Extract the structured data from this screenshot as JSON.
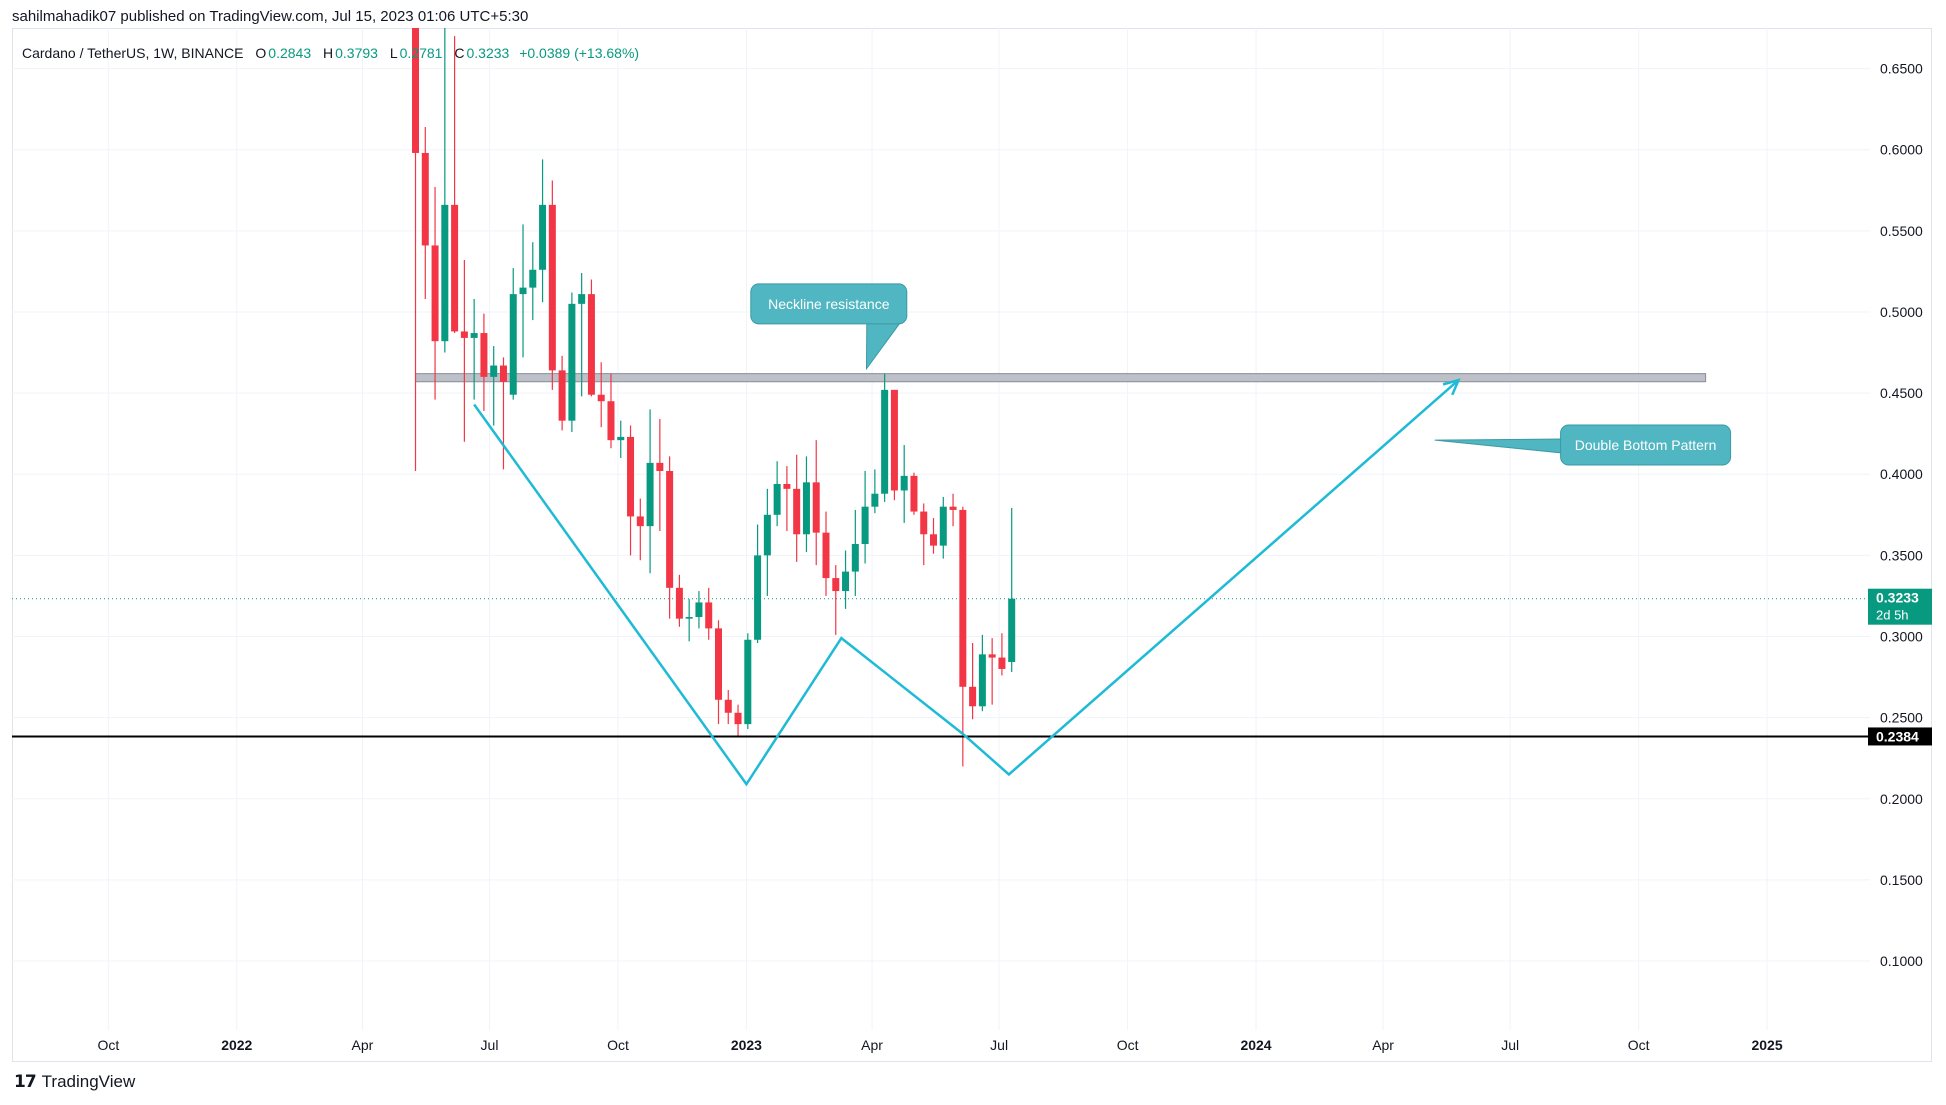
{
  "header": {
    "publisher_text": "sahilmahadik07 published on TradingView.com, Jul 15, 2023 01:06 UTC+5:30"
  },
  "symbol": {
    "name": "Cardano / TetherUS, 1W, BINANCE",
    "open_label": "O",
    "open": "0.2843",
    "high_label": "H",
    "high": "0.3793",
    "low_label": "L",
    "low": "0.2781",
    "close_label": "C",
    "close": "0.3233",
    "change": "+0.0389 (+13.68%)"
  },
  "footer": {
    "brand": "TradingView"
  },
  "colors": {
    "up": "#089981",
    "down": "#f23645",
    "pattern_line": "#1fbad6",
    "callout_bg": "#4fb6c2",
    "support_line": "#000000",
    "resistance_zone": "#b2b5be"
  },
  "chart_data": {
    "type": "candlestick",
    "timeframe": "1W",
    "ylim": [
      0.0575,
      0.675
    ],
    "y_scale_position": "right",
    "y_ticks": [
      "0.6500",
      "0.6000",
      "0.5500",
      "0.5000",
      "0.4500",
      "0.4000",
      "0.3500",
      "0.3000",
      "0.2500",
      "0.2000",
      "0.1500",
      "0.1000"
    ],
    "x_ticks": [
      {
        "label": "Oct",
        "date": "2021-10-01",
        "bold": false
      },
      {
        "label": "2022",
        "date": "2022-01-01",
        "bold": true
      },
      {
        "label": "Apr",
        "date": "2022-04-01",
        "bold": false
      },
      {
        "label": "Jul",
        "date": "2022-07-01",
        "bold": false
      },
      {
        "label": "Oct",
        "date": "2022-10-01",
        "bold": false
      },
      {
        "label": "2023",
        "date": "2023-01-01",
        "bold": true
      },
      {
        "label": "Apr",
        "date": "2023-04-01",
        "bold": false
      },
      {
        "label": "Jul",
        "date": "2023-07-01",
        "bold": false
      },
      {
        "label": "Oct",
        "date": "2023-10-01",
        "bold": false
      },
      {
        "label": "2024",
        "date": "2024-01-01",
        "bold": true
      },
      {
        "label": "Apr",
        "date": "2024-04-01",
        "bold": false
      },
      {
        "label": "Jul",
        "date": "2024-07-01",
        "bold": false
      },
      {
        "label": "Oct",
        "date": "2024-10-01",
        "bold": false
      },
      {
        "label": "2025",
        "date": "2025-01-01",
        "bold": true
      }
    ],
    "x_range": [
      "2021-07-24",
      "2025-03-10"
    ],
    "candles": [
      {
        "date": "2022-05-09",
        "o": 0.805,
        "h": 0.83,
        "l": 0.402,
        "c": 0.598
      },
      {
        "date": "2022-05-16",
        "o": 0.598,
        "h": 0.614,
        "l": 0.508,
        "c": 0.541
      },
      {
        "date": "2022-05-23",
        "o": 0.541,
        "h": 0.577,
        "l": 0.446,
        "c": 0.482
      },
      {
        "date": "2022-05-30",
        "o": 0.482,
        "h": 0.686,
        "l": 0.475,
        "c": 0.566
      },
      {
        "date": "2022-06-06",
        "o": 0.566,
        "h": 0.67,
        "l": 0.487,
        "c": 0.488
      },
      {
        "date": "2022-06-13",
        "o": 0.488,
        "h": 0.532,
        "l": 0.42,
        "c": 0.484
      },
      {
        "date": "2022-06-20",
        "o": 0.484,
        "h": 0.508,
        "l": 0.446,
        "c": 0.487
      },
      {
        "date": "2022-06-27",
        "o": 0.487,
        "h": 0.499,
        "l": 0.439,
        "c": 0.46
      },
      {
        "date": "2022-07-04",
        "o": 0.46,
        "h": 0.479,
        "l": 0.43,
        "c": 0.467
      },
      {
        "date": "2022-07-11",
        "o": 0.467,
        "h": 0.472,
        "l": 0.403,
        "c": 0.457
      },
      {
        "date": "2022-07-18",
        "o": 0.449,
        "h": 0.527,
        "l": 0.446,
        "c": 0.511
      },
      {
        "date": "2022-07-25",
        "o": 0.511,
        "h": 0.554,
        "l": 0.472,
        "c": 0.515
      },
      {
        "date": "2022-08-01",
        "o": 0.515,
        "h": 0.543,
        "l": 0.495,
        "c": 0.526
      },
      {
        "date": "2022-08-08",
        "o": 0.526,
        "h": 0.594,
        "l": 0.506,
        "c": 0.566
      },
      {
        "date": "2022-08-15",
        "o": 0.566,
        "h": 0.581,
        "l": 0.452,
        "c": 0.464
      },
      {
        "date": "2022-08-22",
        "o": 0.464,
        "h": 0.473,
        "l": 0.427,
        "c": 0.433
      },
      {
        "date": "2022-08-29",
        "o": 0.433,
        "h": 0.512,
        "l": 0.426,
        "c": 0.505
      },
      {
        "date": "2022-09-05",
        "o": 0.505,
        "h": 0.524,
        "l": 0.448,
        "c": 0.511
      },
      {
        "date": "2022-09-12",
        "o": 0.511,
        "h": 0.52,
        "l": 0.448,
        "c": 0.449
      },
      {
        "date": "2022-09-19",
        "o": 0.449,
        "h": 0.469,
        "l": 0.429,
        "c": 0.445
      },
      {
        "date": "2022-09-26",
        "o": 0.445,
        "h": 0.462,
        "l": 0.416,
        "c": 0.421
      },
      {
        "date": "2022-10-03",
        "o": 0.421,
        "h": 0.433,
        "l": 0.41,
        "c": 0.423
      },
      {
        "date": "2022-10-10",
        "o": 0.423,
        "h": 0.43,
        "l": 0.35,
        "c": 0.374
      },
      {
        "date": "2022-10-17",
        "o": 0.374,
        "h": 0.385,
        "l": 0.347,
        "c": 0.368
      },
      {
        "date": "2022-10-24",
        "o": 0.368,
        "h": 0.44,
        "l": 0.339,
        "c": 0.407
      },
      {
        "date": "2022-10-31",
        "o": 0.407,
        "h": 0.434,
        "l": 0.365,
        "c": 0.402
      },
      {
        "date": "2022-11-07",
        "o": 0.402,
        "h": 0.411,
        "l": 0.311,
        "c": 0.33
      },
      {
        "date": "2022-11-14",
        "o": 0.33,
        "h": 0.338,
        "l": 0.306,
        "c": 0.311
      },
      {
        "date": "2022-11-21",
        "o": 0.311,
        "h": 0.323,
        "l": 0.297,
        "c": 0.312
      },
      {
        "date": "2022-11-28",
        "o": 0.312,
        "h": 0.328,
        "l": 0.305,
        "c": 0.321
      },
      {
        "date": "2022-12-05",
        "o": 0.321,
        "h": 0.33,
        "l": 0.298,
        "c": 0.305
      },
      {
        "date": "2022-12-12",
        "o": 0.305,
        "h": 0.31,
        "l": 0.246,
        "c": 0.261
      },
      {
        "date": "2022-12-19",
        "o": 0.261,
        "h": 0.267,
        "l": 0.246,
        "c": 0.253
      },
      {
        "date": "2022-12-26",
        "o": 0.253,
        "h": 0.258,
        "l": 0.238,
        "c": 0.246
      },
      {
        "date": "2023-01-02",
        "o": 0.246,
        "h": 0.302,
        "l": 0.243,
        "c": 0.298
      },
      {
        "date": "2023-01-09",
        "o": 0.298,
        "h": 0.369,
        "l": 0.296,
        "c": 0.35
      },
      {
        "date": "2023-01-16",
        "o": 0.35,
        "h": 0.391,
        "l": 0.325,
        "c": 0.375
      },
      {
        "date": "2023-01-23",
        "o": 0.375,
        "h": 0.408,
        "l": 0.368,
        "c": 0.394
      },
      {
        "date": "2023-01-30",
        "o": 0.394,
        "h": 0.405,
        "l": 0.365,
        "c": 0.391
      },
      {
        "date": "2023-02-06",
        "o": 0.391,
        "h": 0.412,
        "l": 0.346,
        "c": 0.363
      },
      {
        "date": "2023-02-13",
        "o": 0.363,
        "h": 0.411,
        "l": 0.352,
        "c": 0.395
      },
      {
        "date": "2023-02-20",
        "o": 0.395,
        "h": 0.421,
        "l": 0.344,
        "c": 0.364
      },
      {
        "date": "2023-02-27",
        "o": 0.364,
        "h": 0.377,
        "l": 0.325,
        "c": 0.336
      },
      {
        "date": "2023-03-06",
        "o": 0.336,
        "h": 0.344,
        "l": 0.301,
        "c": 0.328
      },
      {
        "date": "2023-03-13",
        "o": 0.328,
        "h": 0.353,
        "l": 0.317,
        "c": 0.34
      },
      {
        "date": "2023-03-20",
        "o": 0.34,
        "h": 0.378,
        "l": 0.325,
        "c": 0.357
      },
      {
        "date": "2023-03-27",
        "o": 0.357,
        "h": 0.402,
        "l": 0.345,
        "c": 0.38
      },
      {
        "date": "2023-04-03",
        "o": 0.38,
        "h": 0.403,
        "l": 0.376,
        "c": 0.388
      },
      {
        "date": "2023-04-10",
        "o": 0.388,
        "h": 0.462,
        "l": 0.383,
        "c": 0.452
      },
      {
        "date": "2023-04-17",
        "o": 0.452,
        "h": 0.452,
        "l": 0.384,
        "c": 0.39
      },
      {
        "date": "2023-04-24",
        "o": 0.39,
        "h": 0.418,
        "l": 0.37,
        "c": 0.399
      },
      {
        "date": "2023-05-01",
        "o": 0.399,
        "h": 0.401,
        "l": 0.375,
        "c": 0.377
      },
      {
        "date": "2023-05-08",
        "o": 0.377,
        "h": 0.382,
        "l": 0.344,
        "c": 0.363
      },
      {
        "date": "2023-05-15",
        "o": 0.363,
        "h": 0.373,
        "l": 0.351,
        "c": 0.356
      },
      {
        "date": "2023-05-22",
        "o": 0.356,
        "h": 0.386,
        "l": 0.348,
        "c": 0.38
      },
      {
        "date": "2023-05-29",
        "o": 0.38,
        "h": 0.388,
        "l": 0.368,
        "c": 0.378
      },
      {
        "date": "2023-06-05",
        "o": 0.378,
        "h": 0.38,
        "l": 0.22,
        "c": 0.269
      },
      {
        "date": "2023-06-12",
        "o": 0.269,
        "h": 0.296,
        "l": 0.249,
        "c": 0.257
      },
      {
        "date": "2023-06-19",
        "o": 0.257,
        "h": 0.301,
        "l": 0.254,
        "c": 0.289
      },
      {
        "date": "2023-06-26",
        "o": 0.289,
        "h": 0.299,
        "l": 0.258,
        "c": 0.287
      },
      {
        "date": "2023-07-03",
        "o": 0.287,
        "h": 0.302,
        "l": 0.276,
        "c": 0.28
      },
      {
        "date": "2023-07-10",
        "o": 0.2843,
        "h": 0.3793,
        "l": 0.2781,
        "c": 0.3233
      }
    ],
    "drawings": {
      "resistance_zone": {
        "from": "2022-05-09",
        "to": "2024-11-18",
        "top": 0.462,
        "bottom": 0.457
      },
      "support_line": {
        "price": 0.2384
      },
      "pattern_polyline": [
        {
          "date": "2022-06-20",
          "price": 0.443
        },
        {
          "date": "2023-01-01",
          "price": 0.209
        },
        {
          "date": "2023-03-10",
          "price": 0.299
        },
        {
          "date": "2023-06-05",
          "price": 0.24
        },
        {
          "date": "2023-07-08",
          "price": 0.215
        },
        {
          "date": "2024-05-25",
          "price": 0.458
        }
      ],
      "callouts": [
        {
          "text": "Neckline resistance",
          "date": "2023-03-01",
          "price": 0.505,
          "pointer_date": "2023-03-28",
          "pointer_price": 0.465,
          "side": "above"
        },
        {
          "text": "Double Bottom Pattern",
          "date": "2024-10-06",
          "price": 0.418,
          "pointer_date": "2024-05-08",
          "pointer_price": 0.421,
          "side": "right"
        }
      ]
    },
    "price_labels": [
      {
        "value": "0.3233",
        "sub": "2d 5h",
        "price": 0.3233,
        "color": "#089981"
      },
      {
        "value": "0.2384",
        "price": 0.2384,
        "color": "#000000"
      }
    ]
  }
}
